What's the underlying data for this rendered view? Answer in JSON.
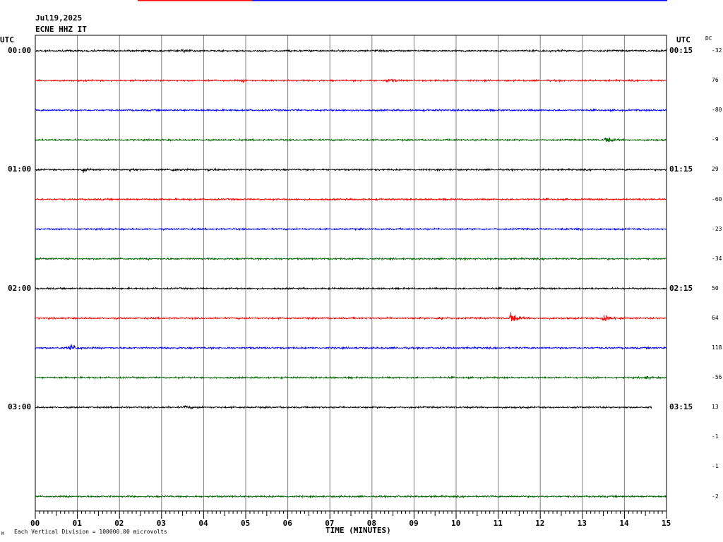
{
  "header": {
    "date": "Jul19,2025",
    "station": "ECNE HHZ IT",
    "utc_left": "UTC",
    "utc_right": "UTC",
    "dc_label": "DC"
  },
  "footer": {
    "xlabel": "TIME (MINUTES)",
    "scale_note": "Each Vertical Division = 100000.00 microvolts",
    "corner_mark": "M"
  },
  "colors": {
    "line_colors": [
      "#000000",
      "#ff0000",
      "#0000ff",
      "#006400"
    ],
    "grid": "#808080",
    "top_bar_red": "#ff0000",
    "top_bar_blue": "#0000ff"
  },
  "chart_data": {
    "type": "line",
    "title": "ECNE HHZ IT",
    "xlabel": "TIME (MINUTES)",
    "x_range": [
      0,
      15
    ],
    "x_ticks": [
      "00",
      "01",
      "02",
      "03",
      "04",
      "05",
      "06",
      "07",
      "08",
      "09",
      "10",
      "11",
      "12",
      "13",
      "14",
      "15"
    ],
    "rows": [
      {
        "left_label": "00:00",
        "right_label": "00:15",
        "dc": "-32",
        "color_index": 0,
        "length": 15,
        "events": [
          [
            3.5,
            2.2
          ]
        ]
      },
      {
        "left_label": "",
        "right_label": "",
        "dc": "76",
        "color_index": 1,
        "length": 15,
        "events": [
          [
            8.35,
            3.0
          ],
          [
            4.9,
            1.8
          ]
        ]
      },
      {
        "left_label": "",
        "right_label": "",
        "dc": "-80",
        "color_index": 2,
        "length": 15,
        "events": []
      },
      {
        "left_label": "",
        "right_label": "",
        "dc": "-9",
        "color_index": 3,
        "length": 15,
        "events": [
          [
            13.55,
            5.5
          ]
        ]
      },
      {
        "left_label": "01:00",
        "right_label": "01:15",
        "dc": "29",
        "color_index": 0,
        "length": 15,
        "events": [
          [
            1.1,
            3.0
          ],
          [
            2.25,
            2.0
          ],
          [
            3.25,
            2.6
          ],
          [
            4.1,
            1.8
          ]
        ]
      },
      {
        "left_label": "",
        "right_label": "",
        "dc": "-60",
        "color_index": 1,
        "length": 15,
        "events": []
      },
      {
        "left_label": "",
        "right_label": "",
        "dc": "-23",
        "color_index": 2,
        "length": 15,
        "events": [
          [
            12.9,
            1.6
          ]
        ]
      },
      {
        "left_label": "",
        "right_label": "",
        "dc": "-34",
        "color_index": 3,
        "length": 15,
        "events": []
      },
      {
        "left_label": "02:00",
        "right_label": "02:15",
        "dc": "50",
        "color_index": 0,
        "length": 15,
        "events": []
      },
      {
        "left_label": "",
        "right_label": "",
        "dc": "64",
        "color_index": 1,
        "length": 15,
        "events": [
          [
            11.3,
            9.0
          ],
          [
            13.5,
            9.0
          ],
          [
            9.6,
            2.6
          ]
        ]
      },
      {
        "left_label": "",
        "right_label": "",
        "dc": "118",
        "color_index": 2,
        "length": 15,
        "events": [
          [
            0.82,
            6.0
          ]
        ]
      },
      {
        "left_label": "",
        "right_label": "",
        "dc": "-56",
        "color_index": 3,
        "length": 15,
        "events": [
          [
            14.5,
            1.8
          ]
        ]
      },
      {
        "left_label": "03:00",
        "right_label": "03:15",
        "dc": "13",
        "color_index": 0,
        "length": 14.65,
        "events": [
          [
            3.55,
            2.0
          ]
        ]
      },
      {
        "left_label": "",
        "right_label": "",
        "dc": "-1",
        "color_index": 1,
        "length": 0,
        "events": []
      },
      {
        "left_label": "",
        "right_label": "",
        "dc": "-1",
        "color_index": 2,
        "length": 0,
        "events": []
      },
      {
        "left_label": "",
        "right_label": "",
        "dc": "-2",
        "color_index": 3,
        "length": 15,
        "events": []
      }
    ]
  }
}
